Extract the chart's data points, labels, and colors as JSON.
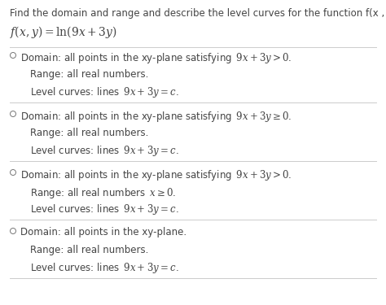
{
  "bg_color": "#ffffff",
  "header": "Find the domain and range and describe the level curves for the function f(x , y).",
  "func": "$f(x, y) = \\mathrm{ln}(9x + 3y)$",
  "divider_color": "#cccccc",
  "text_color": "#444444",
  "circle_color": "#777777",
  "options": [
    {
      "domain": "Domain: all points in the xy-plane satisfying $\\,9x+3y>0$.",
      "range": "Range: all real numbers.",
      "level": "Level curves: lines $\\,9x+3y=c$."
    },
    {
      "domain": "Domain: all points in the xy-plane satisfying $\\,9x+3y\\geq 0$.",
      "range": "Range: all real numbers.",
      "level": "Level curves: lines $\\,9x+3y=c$."
    },
    {
      "domain": "Domain: all points in the xy-plane satisfying $\\,9x+3y>0$.",
      "range": "Range: all real numbers $\\,x\\geq 0$.",
      "level": "Level curves: lines $\\,9x+3y=c$."
    },
    {
      "domain": "Domain: all points in the xy-plane.",
      "range": "Range: all real numbers.",
      "level": "Level curves: lines $\\,9x+3y=c$."
    }
  ]
}
